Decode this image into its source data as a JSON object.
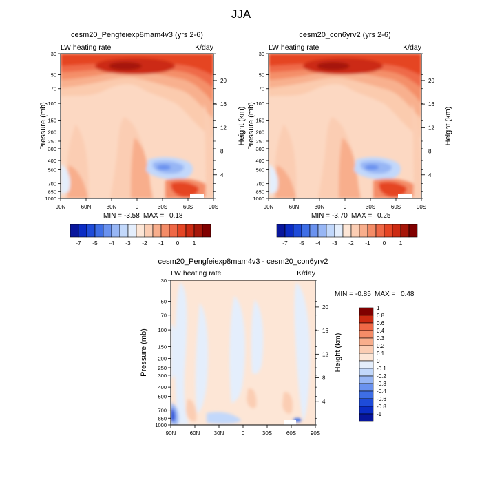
{
  "figure_title": "JJA",
  "chart_data": [
    {
      "type": "heatmap",
      "title": "cesm20_Pengfeiexp8mam4v3 (yrs 2-6)",
      "left_label": "LW heating rate",
      "right_label": "K/day",
      "ylabel": "Pressure (mb)",
      "ylabel_right": "Height (km)",
      "x_ticks": [
        "90N",
        "60N",
        "30N",
        "0",
        "30S",
        "60S",
        "90S"
      ],
      "y_ticks": [
        30,
        50,
        70,
        100,
        150,
        200,
        250,
        300,
        400,
        500,
        700,
        850,
        1000
      ],
      "height_ticks": [
        20,
        16,
        12,
        8,
        4
      ],
      "min_label": "MIN =",
      "min_value": "-3.58",
      "max_label": "MAX =",
      "max_value": "0.18",
      "colorbar": {
        "levels": [
          -7.5,
          -7,
          -6.5,
          -6,
          -5.5,
          -5,
          -4.5,
          -4,
          -3.5,
          -3,
          -2.5,
          -2,
          -1.5,
          -1,
          -0.5,
          0,
          0.5,
          1,
          1.5
        ],
        "tick_labels": [
          "-7",
          "-5",
          "-4",
          "-3",
          "-2",
          "-1",
          "0",
          "1"
        ],
        "colors": [
          "#08169c",
          "#0b2cc4",
          "#1e4bd9",
          "#3e6ee6",
          "#6a92ef",
          "#97b6f5",
          "#c2d8fb",
          "#e4eefc",
          "#fde6d6",
          "#fbcdb3",
          "#f8ae8c",
          "#f48c67",
          "#ef6846",
          "#e54524",
          "#cc2a12",
          "#a61609",
          "#800000"
        ]
      }
    },
    {
      "type": "heatmap",
      "title": "cesm20_con6yrv2 (yrs 2-6)",
      "left_label": "LW heating rate",
      "right_label": "K/day",
      "ylabel": "Pressure (mb)",
      "ylabel_right": "Height (km)",
      "x_ticks": [
        "90N",
        "60N",
        "30N",
        "0",
        "30S",
        "60S",
        "90S"
      ],
      "y_ticks": [
        30,
        50,
        70,
        100,
        150,
        200,
        250,
        300,
        400,
        500,
        700,
        850,
        1000
      ],
      "height_ticks": [
        20,
        16,
        12,
        8,
        4
      ],
      "min_label": "MIN =",
      "min_value": "-3.70",
      "max_label": "MAX =",
      "max_value": "0.25",
      "colorbar": {
        "tick_labels": [
          "-7",
          "-5",
          "-4",
          "-3",
          "-2",
          "-1",
          "0",
          "1"
        ]
      }
    },
    {
      "type": "heatmap",
      "title": "cesm20_Pengfeiexp8mam4v3 - cesm20_con6yrv2",
      "left_label": "LW heating rate",
      "right_label": "K/day",
      "ylabel": "Pressure (mb)",
      "ylabel_right": "Height (km)",
      "x_ticks": [
        "90N",
        "60N",
        "30N",
        "0",
        "30S",
        "60S",
        "90S"
      ],
      "y_ticks": [
        30,
        50,
        70,
        100,
        150,
        200,
        250,
        300,
        400,
        500,
        700,
        850,
        1000
      ],
      "height_ticks": [
        20,
        16,
        12,
        8,
        4
      ],
      "min_label": "MIN =",
      "min_value": "-0.85",
      "max_label": "MAX =",
      "max_value": "0.48",
      "colorbar": {
        "levels": [
          -1,
          -0.8,
          -0.6,
          -0.4,
          -0.3,
          -0.2,
          -0.1,
          0,
          0.1,
          0.2,
          0.3,
          0.4,
          0.6,
          0.8,
          1
        ],
        "tick_labels": [
          "-1",
          "-0.8",
          "-0.6",
          "-0.4",
          "-0.3",
          "-0.2",
          "-0.1",
          "0",
          "0.1",
          "0.2",
          "0.3",
          "0.4",
          "0.6",
          "0.8",
          "1"
        ],
        "colors": [
          "#08169c",
          "#0b2cc4",
          "#1e4bd9",
          "#3e6ee6",
          "#6a92ef",
          "#97b6f5",
          "#c2d8fb",
          "#e4eefc",
          "#fde6d6",
          "#fbcdb3",
          "#f8ae8c",
          "#f48c67",
          "#ef6846",
          "#cc2a12",
          "#800000"
        ]
      }
    }
  ]
}
